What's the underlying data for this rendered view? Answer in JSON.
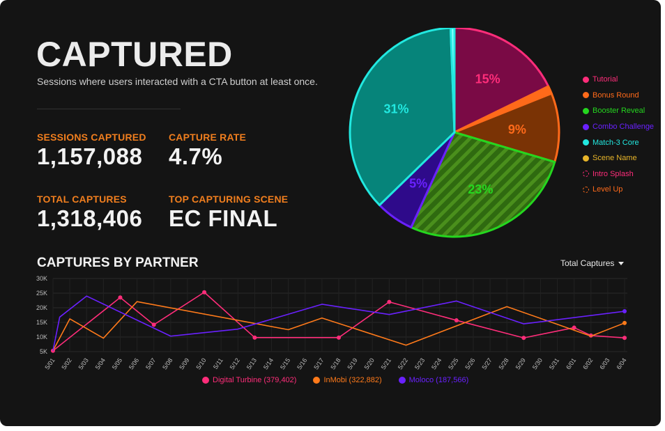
{
  "header": {
    "title": "CAPTURED",
    "subtitle": "Sessions where users interacted with a CTA button at least once."
  },
  "stats": [
    {
      "label": "SESSIONS CAPTURED",
      "value": "1,157,088"
    },
    {
      "label": "CAPTURE RATE",
      "value": "4.7%"
    },
    {
      "label": "TOTAL CAPTURES",
      "value": "1,318,406"
    },
    {
      "label": "TOP CAPTURING SCENE",
      "value": "EC FINAL"
    }
  ],
  "line_section": {
    "title": "CAPTURES BY PARTNER",
    "dropdown_label": "Total Captures"
  },
  "chart_data": [
    {
      "type": "pie",
      "slices": [
        {
          "name": "Tutorial",
          "value": 15,
          "label": "15%",
          "color": "#ff2d7a",
          "fill": "#7a0a45"
        },
        {
          "name": "Bonus Round",
          "value": 1,
          "label": "",
          "color": "#ff6a1a",
          "fill": "#ff6a1a"
        },
        {
          "name": "Scene Name",
          "value": 9,
          "label": "9%",
          "color": "#ff6a1a",
          "fill": "#7a3305"
        },
        {
          "name": "Booster Reveal",
          "value": 23,
          "label": "23%",
          "color": "#25d61f",
          "fill": "#2f6a10",
          "hatched": true
        },
        {
          "name": "Combo Challenge",
          "value": 5,
          "label": "5%",
          "color": "#6a21ff",
          "fill": "#2e0a8a"
        },
        {
          "name": "Match-3 Core",
          "value": 31,
          "label": "31%",
          "color": "#22e8e0",
          "fill": "#06847a"
        },
        {
          "name": "Intro Splash",
          "value": 0.5,
          "label": "",
          "color": "#22e8e0",
          "fill": "#7fffff"
        }
      ],
      "legend": [
        {
          "name": "Tutorial",
          "color": "#ff2d7a",
          "hollow": false
        },
        {
          "name": "Bonus Round",
          "color": "#ff6a1a",
          "hollow": false
        },
        {
          "name": "Booster Reveal",
          "color": "#25d61f",
          "hollow": false
        },
        {
          "name": "Combo Challenge",
          "color": "#6a21ff",
          "hollow": false
        },
        {
          "name": "Match-3 Core",
          "color": "#22e8e0",
          "hollow": false
        },
        {
          "name": "Scene Name",
          "color": "#e8b52a",
          "hollow": false
        },
        {
          "name": "Intro Splash",
          "color": "#ff2d7a",
          "hollow": true
        },
        {
          "name": "Level Up",
          "color": "#ff6a1a",
          "hollow": true
        }
      ],
      "legend_position": "right"
    },
    {
      "type": "line",
      "title": "CAPTURES BY PARTNER",
      "x": [
        "5/01",
        "5/02",
        "5/03",
        "5/04",
        "5/05",
        "5/06",
        "5/07",
        "5/08",
        "5/09",
        "5/10",
        "5/11",
        "5/12",
        "5/13",
        "5/14",
        "5/15",
        "5/16",
        "5/17",
        "5/18",
        "5/19",
        "5/20",
        "5/21",
        "5/22",
        "5/23",
        "5/24",
        "5/25",
        "5/26",
        "5/27",
        "5/28",
        "5/29",
        "5/30",
        "5/31",
        "6/01",
        "6/02",
        "6/03",
        "6/04"
      ],
      "ylim": [
        5000,
        30000
      ],
      "yticks": [
        "5K",
        "10K",
        "15K",
        "20K",
        "25K",
        "30K"
      ],
      "ytick_values": [
        5000,
        10000,
        15000,
        20000,
        25000,
        30000
      ],
      "grid": true,
      "series": [
        {
          "name": "Digital Turbine (379,402)",
          "color": "#ff2d7a",
          "markers": true,
          "points": [
            [
              0,
              5300
            ],
            [
              4,
              23500
            ],
            [
              6,
              14200
            ],
            [
              9,
              25300
            ],
            [
              12,
              9800
            ],
            [
              17,
              9800
            ],
            [
              20,
              22000
            ],
            [
              24,
              15700
            ],
            [
              28,
              9700
            ],
            [
              31,
              13200
            ],
            [
              32,
              10500
            ],
            [
              34,
              9700
            ]
          ]
        },
        {
          "name": "InMobi (322,882)",
          "color": "#ff7a1a",
          "markers": false,
          "points": [
            [
              0,
              5300
            ],
            [
              1,
              16200
            ],
            [
              3,
              9600
            ],
            [
              5,
              22100
            ],
            [
              14,
              12500
            ],
            [
              16,
              16500
            ],
            [
              21,
              7200
            ],
            [
              27,
              20400
            ],
            [
              32,
              10300
            ],
            [
              34,
              14800
            ]
          ]
        },
        {
          "name": "Moloco (187,566)",
          "color": "#6a21ff",
          "markers": false,
          "points": [
            [
              0,
              5300
            ],
            [
              0.4,
              16800
            ],
            [
              2,
              24000
            ],
            [
              7,
              10300
            ],
            [
              11,
              12700
            ],
            [
              16,
              21200
            ],
            [
              20,
              17700
            ],
            [
              24,
              22300
            ],
            [
              28,
              14500
            ],
            [
              34,
              18800
            ]
          ]
        }
      ],
      "legend_position": "bottom"
    }
  ]
}
